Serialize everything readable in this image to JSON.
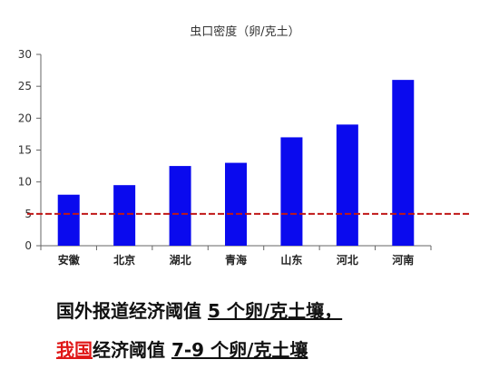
{
  "chart_data": {
    "type": "bar",
    "title": "虫口密度（卵/克土）",
    "categories": [
      "安徽",
      "北京",
      "湖北",
      "青海",
      "山东",
      "河北",
      "河南"
    ],
    "values": [
      8,
      9.5,
      12.5,
      13,
      17,
      19,
      26
    ],
    "ylim": [
      0,
      30
    ],
    "yticks": [
      0,
      5,
      10,
      15,
      20,
      25,
      30
    ],
    "threshold": 5,
    "grid": false,
    "colors": {
      "bar": "#0a0aee",
      "threshold": "#c01818",
      "axis": "#666666"
    }
  },
  "captions": {
    "line1": {
      "prefix": "国外报道经济阈值 ",
      "value": "5 个卵/克土壤，"
    },
    "line2": {
      "highlight": "我国",
      "middle": "经济阈值 ",
      "value": "7-9 个卵/克土壤"
    }
  }
}
